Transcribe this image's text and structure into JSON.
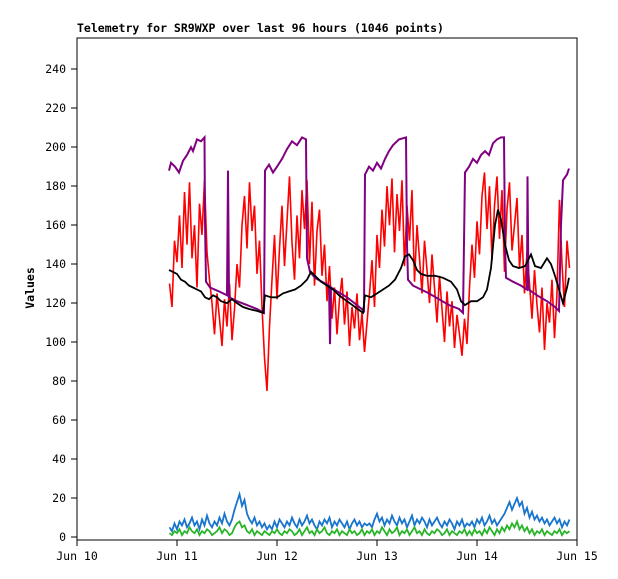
{
  "chart_data": {
    "type": "line",
    "title": "Telemetry for SR9WXP over last 96 hours (1046 points)",
    "ylabel": "Values",
    "xlabel": "",
    "grid": false,
    "legend": "none",
    "background_color": "#ffffff",
    "axis_color": "#000000",
    "xlim": [
      10,
      15
    ],
    "ylim": [
      -1.5,
      256
    ],
    "x_ticks": [
      {
        "value": 10,
        "label": "Jun 10"
      },
      {
        "value": 11,
        "label": "Jun 11"
      },
      {
        "value": 12,
        "label": "Jun 12"
      },
      {
        "value": 13,
        "label": "Jun 13"
      },
      {
        "value": 14,
        "label": "Jun 14"
      },
      {
        "value": 15,
        "label": "Jun 15"
      }
    ],
    "y_ticks": [
      {
        "value": 0,
        "label": "0"
      },
      {
        "value": 20,
        "label": "20"
      },
      {
        "value": 40,
        "label": "40"
      },
      {
        "value": 60,
        "label": "60"
      },
      {
        "value": 80,
        "label": "80"
      },
      {
        "value": 100,
        "label": "100"
      },
      {
        "value": 120,
        "label": "120"
      },
      {
        "value": 140,
        "label": "140"
      },
      {
        "value": 160,
        "label": "160"
      },
      {
        "value": 180,
        "label": "180"
      },
      {
        "value": 200,
        "label": "200"
      },
      {
        "value": 220,
        "label": "220"
      },
      {
        "value": 240,
        "label": "240"
      }
    ],
    "series": [
      {
        "name": "red",
        "color": "#ff0000",
        "width": 1.6,
        "x_start": 10.925,
        "x_step": 0.025,
        "values": [
          130,
          118,
          152,
          141,
          165,
          138,
          177,
          150,
          182,
          143,
          160,
          128,
          171,
          155,
          183,
          146,
          132,
          120,
          104,
          125,
          112,
          98,
          122,
          108,
          130,
          101,
          117,
          140,
          128,
          160,
          175,
          148,
          182,
          157,
          170,
          135,
          152,
          118,
          92,
          75,
          108,
          132,
          155,
          122,
          148,
          170,
          139,
          162,
          185,
          151,
          132,
          165,
          143,
          178,
          158,
          183,
          140,
          172,
          129,
          157,
          168,
          134,
          150,
          121,
          139,
          112,
          128,
          104,
          122,
          133,
          109,
          126,
          98,
          118,
          107,
          125,
          101,
          115,
          95,
          110,
          125,
          142,
          118,
          155,
          138,
          168,
          149,
          180,
          160,
          184,
          146,
          176,
          157,
          183,
          139,
          170,
          152,
          178,
          131,
          160,
          143,
          125,
          152,
          137,
          120,
          145,
          128,
          110,
          134,
          117,
          100,
          126,
          108,
          121,
          97,
          114,
          104,
          93,
          112,
          99,
          128,
          150,
          133,
          162,
          145,
          175,
          187,
          158,
          180,
          142,
          170,
          185,
          153,
          178,
          136,
          168,
          182,
          147,
          160,
          174,
          138,
          155,
          125,
          146,
          130,
          112,
          137,
          119,
          105,
          128,
          96,
          120,
          110,
          132,
          102,
          125,
          173,
          140,
          118,
          152,
          138
        ]
      },
      {
        "name": "purple",
        "color": "#800080",
        "width": 2,
        "points": [
          [
            10.92,
            188
          ],
          [
            10.94,
            192
          ],
          [
            10.98,
            190
          ],
          [
            11.02,
            187
          ],
          [
            11.06,
            193
          ],
          [
            11.1,
            196
          ],
          [
            11.14,
            200
          ],
          [
            11.16,
            198
          ],
          [
            11.2,
            204
          ],
          [
            11.24,
            203
          ],
          [
            11.275,
            205
          ],
          [
            11.28,
            162
          ],
          [
            11.29,
            131
          ],
          [
            11.33,
            128
          ],
          [
            11.42,
            126
          ],
          [
            11.5,
            124
          ],
          [
            11.51,
            188
          ],
          [
            11.52,
            123
          ],
          [
            11.6,
            121
          ],
          [
            11.7,
            119
          ],
          [
            11.8,
            117
          ],
          [
            11.87,
            115
          ],
          [
            11.88,
            188
          ],
          [
            11.92,
            191
          ],
          [
            11.96,
            187
          ],
          [
            12.0,
            190
          ],
          [
            12.05,
            194
          ],
          [
            12.1,
            199
          ],
          [
            12.15,
            203
          ],
          [
            12.2,
            201
          ],
          [
            12.25,
            205
          ],
          [
            12.29,
            204
          ],
          [
            12.3,
            143
          ],
          [
            12.33,
            136
          ],
          [
            12.38,
            133
          ],
          [
            12.45,
            131
          ],
          [
            12.52,
            129
          ],
          [
            12.53,
            99
          ],
          [
            12.54,
            128
          ],
          [
            12.6,
            126
          ],
          [
            12.7,
            123
          ],
          [
            12.8,
            119
          ],
          [
            12.87,
            116
          ],
          [
            12.88,
            186
          ],
          [
            12.92,
            190
          ],
          [
            12.96,
            188
          ],
          [
            13.0,
            192
          ],
          [
            13.04,
            189
          ],
          [
            13.08,
            194
          ],
          [
            13.12,
            198
          ],
          [
            13.16,
            201
          ],
          [
            13.22,
            204
          ],
          [
            13.29,
            205
          ],
          [
            13.3,
            150
          ],
          [
            13.31,
            132
          ],
          [
            13.36,
            129
          ],
          [
            13.44,
            127
          ],
          [
            13.52,
            125
          ],
          [
            13.62,
            122
          ],
          [
            13.72,
            119
          ],
          [
            13.82,
            117
          ],
          [
            13.86,
            115
          ],
          [
            13.88,
            187
          ],
          [
            13.92,
            190
          ],
          [
            13.96,
            194
          ],
          [
            14.0,
            192
          ],
          [
            14.04,
            196
          ],
          [
            14.08,
            198
          ],
          [
            14.12,
            196
          ],
          [
            14.16,
            202
          ],
          [
            14.2,
            204
          ],
          [
            14.24,
            205
          ],
          [
            14.27,
            205
          ],
          [
            14.28,
            150
          ],
          [
            14.29,
            133
          ],
          [
            14.36,
            131
          ],
          [
            14.44,
            129
          ],
          [
            14.5,
            127
          ],
          [
            14.505,
            185
          ],
          [
            14.515,
            127
          ],
          [
            14.6,
            124
          ],
          [
            14.7,
            121
          ],
          [
            14.78,
            118
          ],
          [
            14.82,
            116
          ],
          [
            14.84,
            160
          ],
          [
            14.86,
            183
          ],
          [
            14.9,
            186
          ],
          [
            14.92,
            189
          ]
        ]
      },
      {
        "name": "blue",
        "color": "#1874cd",
        "width": 1.8,
        "x_start": 10.925,
        "x_step": 0.025,
        "values": [
          5,
          3,
          7,
          4,
          8,
          6,
          9,
          5,
          7,
          10,
          6,
          8,
          4,
          9,
          6,
          11,
          7,
          5,
          8,
          6,
          10,
          7,
          12,
          8,
          6,
          9,
          14,
          18,
          22,
          16,
          19,
          12,
          9,
          7,
          10,
          6,
          8,
          5,
          7,
          4,
          6,
          4,
          8,
          5,
          9,
          7,
          5,
          8,
          6,
          10,
          7,
          5,
          9,
          6,
          8,
          11,
          7,
          9,
          6,
          4,
          8,
          6,
          9,
          7,
          10,
          5,
          8,
          6,
          9,
          7,
          5,
          8,
          4,
          7,
          9,
          6,
          8,
          5,
          7,
          6,
          7,
          5,
          9,
          12,
          8,
          10,
          6,
          9,
          7,
          11,
          8,
          6,
          10,
          7,
          9,
          5,
          8,
          11,
          6,
          9,
          7,
          10,
          8,
          5,
          9,
          6,
          8,
          10,
          7,
          5,
          8,
          6,
          9,
          7,
          4,
          8,
          6,
          9,
          5,
          7,
          6,
          8,
          5,
          9,
          7,
          10,
          6,
          8,
          11,
          7,
          9,
          6,
          8,
          10,
          12,
          15,
          18,
          14,
          17,
          20,
          16,
          18,
          12,
          15,
          10,
          13,
          9,
          11,
          8,
          10,
          7,
          9,
          6,
          8,
          10,
          7,
          9,
          5,
          8,
          6,
          9
        ]
      },
      {
        "name": "green",
        "color": "#28b428",
        "width": 1.8,
        "x_start": 10.925,
        "x_step": 0.025,
        "values": [
          2,
          1,
          3,
          2,
          4,
          1,
          3,
          2,
          5,
          3,
          2,
          4,
          1,
          3,
          2,
          4,
          3,
          1,
          2,
          3,
          5,
          2,
          4,
          3,
          1,
          2,
          5,
          7,
          8,
          5,
          6,
          3,
          2,
          4,
          1,
          3,
          2,
          1,
          3,
          2,
          1,
          3,
          2,
          4,
          2,
          1,
          3,
          2,
          4,
          3,
          1,
          2,
          4,
          1,
          3,
          5,
          2,
          3,
          1,
          4,
          2,
          3,
          5,
          2,
          1,
          3,
          2,
          4,
          1,
          3,
          2,
          1,
          4,
          2,
          3,
          1,
          2,
          4,
          1,
          3,
          2,
          4,
          1,
          3,
          2,
          5,
          3,
          1,
          4,
          2,
          3,
          5,
          1,
          3,
          2,
          4,
          1,
          3,
          5,
          2,
          3,
          1,
          4,
          2,
          1,
          3,
          2,
          4,
          3,
          1,
          2,
          4,
          1,
          3,
          2,
          1,
          3,
          2,
          4,
          1,
          3,
          1,
          4,
          2,
          3,
          1,
          4,
          2,
          5,
          3,
          1,
          4,
          2,
          5,
          3,
          6,
          4,
          7,
          5,
          8,
          4,
          6,
          3,
          5,
          2,
          4,
          1,
          3,
          2,
          4,
          1,
          3,
          2,
          1,
          3,
          2,
          4,
          1,
          3,
          2,
          3
        ]
      },
      {
        "name": "black",
        "color": "#000000",
        "width": 1.8,
        "points": [
          [
            10.92,
            137
          ],
          [
            10.96,
            136
          ],
          [
            11.0,
            135
          ],
          [
            11.04,
            132
          ],
          [
            11.08,
            131
          ],
          [
            11.12,
            129
          ],
          [
            11.16,
            128
          ],
          [
            11.2,
            127
          ],
          [
            11.24,
            126
          ],
          [
            11.28,
            123
          ],
          [
            11.32,
            122
          ],
          [
            11.36,
            124
          ],
          [
            11.4,
            123
          ],
          [
            11.44,
            121
          ],
          [
            11.5,
            120
          ],
          [
            11.55,
            122
          ],
          [
            11.6,
            120
          ],
          [
            11.66,
            118
          ],
          [
            11.72,
            117
          ],
          [
            11.8,
            116
          ],
          [
            11.86,
            115
          ],
          [
            11.88,
            124
          ],
          [
            11.94,
            123
          ],
          [
            12.0,
            123
          ],
          [
            12.06,
            125
          ],
          [
            12.12,
            126
          ],
          [
            12.18,
            127
          ],
          [
            12.24,
            129
          ],
          [
            12.3,
            132
          ],
          [
            12.34,
            136
          ],
          [
            12.38,
            134
          ],
          [
            12.44,
            131
          ],
          [
            12.5,
            129
          ],
          [
            12.56,
            127
          ],
          [
            12.62,
            124
          ],
          [
            12.7,
            121
          ],
          [
            12.78,
            118
          ],
          [
            12.86,
            115
          ],
          [
            12.88,
            124
          ],
          [
            12.94,
            123
          ],
          [
            13.0,
            125
          ],
          [
            13.06,
            127
          ],
          [
            13.12,
            129
          ],
          [
            13.18,
            132
          ],
          [
            13.24,
            138
          ],
          [
            13.28,
            144
          ],
          [
            13.32,
            145
          ],
          [
            13.36,
            142
          ],
          [
            13.4,
            137
          ],
          [
            13.44,
            135
          ],
          [
            13.5,
            134
          ],
          [
            13.58,
            134
          ],
          [
            13.66,
            133
          ],
          [
            13.74,
            131
          ],
          [
            13.8,
            127
          ],
          [
            13.84,
            121
          ],
          [
            13.88,
            119
          ],
          [
            13.94,
            121
          ],
          [
            14.0,
            121
          ],
          [
            14.06,
            123
          ],
          [
            14.1,
            127
          ],
          [
            14.14,
            138
          ],
          [
            14.18,
            160
          ],
          [
            14.21,
            168
          ],
          [
            14.24,
            163
          ],
          [
            14.28,
            150
          ],
          [
            14.32,
            142
          ],
          [
            14.36,
            139
          ],
          [
            14.42,
            138
          ],
          [
            14.48,
            139
          ],
          [
            14.54,
            145
          ],
          [
            14.58,
            139
          ],
          [
            14.64,
            138
          ],
          [
            14.7,
            143
          ],
          [
            14.74,
            140
          ],
          [
            14.78,
            134
          ],
          [
            14.82,
            127
          ],
          [
            14.86,
            120
          ],
          [
            14.9,
            128
          ],
          [
            14.92,
            133
          ]
        ]
      }
    ]
  }
}
